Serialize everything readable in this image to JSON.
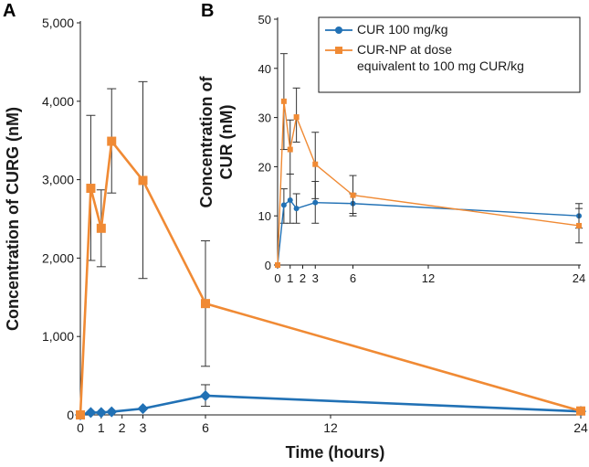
{
  "colors": {
    "cur": "#2171b5",
    "np": "#f08a34",
    "axis": "#1a1a1a",
    "errorbar": "#333333"
  },
  "chart_data": [
    {
      "panel": "A",
      "type": "line",
      "xlabel": "Time (hours)",
      "ylabel": "Concentration of CURG (nM)",
      "xlim": [
        0,
        24
      ],
      "ylim": [
        0,
        5000
      ],
      "xticks": [
        0,
        1,
        2,
        3,
        6,
        12,
        24
      ],
      "xtick_labels": [
        "0",
        "1",
        "2",
        "3",
        "6",
        "12",
        "24"
      ],
      "yticks": [
        0,
        1000,
        2000,
        3000,
        4000,
        5000
      ],
      "ytick_labels": [
        "0",
        "1,000",
        "2,000",
        "3,000",
        "4,000",
        "5,000"
      ],
      "grid": false,
      "series": [
        {
          "name": "CUR 100 mg/kg",
          "color_key": "cur",
          "marker": "diamond",
          "x": [
            0,
            0.5,
            1,
            1.5,
            3,
            6,
            24
          ],
          "y": [
            0,
            30,
            30,
            40,
            80,
            245,
            45
          ],
          "err_low": [
            0,
            0,
            0,
            0,
            0,
            110,
            0
          ],
          "err_high": [
            0,
            0,
            0,
            0,
            0,
            385,
            0
          ]
        },
        {
          "name": "CUR-NP at dose equivalent to 100 mg CUR/kg",
          "color_key": "np",
          "marker": "square",
          "x": [
            0,
            0.5,
            1,
            1.5,
            3,
            6,
            24
          ],
          "y": [
            0,
            2890,
            2380,
            3490,
            2990,
            1420,
            50
          ],
          "err_low": [
            0,
            1970,
            1890,
            2830,
            1740,
            620,
            50
          ],
          "err_high": [
            0,
            3820,
            2870,
            4160,
            4250,
            2220,
            50
          ]
        }
      ]
    },
    {
      "panel": "B",
      "type": "line",
      "xlabel": "",
      "ylabel_lines": [
        "Concentration of",
        "CUR (nM)"
      ],
      "xlim": [
        0,
        24
      ],
      "ylim": [
        0,
        50
      ],
      "xticks": [
        0,
        1,
        2,
        3,
        6,
        12,
        24
      ],
      "xtick_labels": [
        "0",
        "1",
        "2",
        "3",
        "6",
        "12",
        "24"
      ],
      "yticks": [
        0,
        10,
        20,
        30,
        40,
        50
      ],
      "ytick_labels": [
        "0",
        "10",
        "20",
        "30",
        "40",
        "50"
      ],
      "grid": false,
      "legend_position": "top-right",
      "legend_lines": [
        {
          "color_key": "cur",
          "marker": "circle",
          "lines": [
            "CUR 100 mg/kg"
          ]
        },
        {
          "color_key": "np",
          "marker": "square",
          "lines": [
            "CUR-NP at dose",
            "equivalent to 100 mg CUR/kg"
          ]
        }
      ],
      "series": [
        {
          "name": "CUR 100 mg/kg",
          "color_key": "cur",
          "marker": "circle",
          "x": [
            0,
            0.5,
            1,
            1.5,
            3,
            6,
            24
          ],
          "y": [
            0,
            12.2,
            13.2,
            11.5,
            12.7,
            12.5,
            10.0
          ],
          "err_low": [
            0,
            8.5,
            8.5,
            8.5,
            8.5,
            10.5,
            7.5
          ],
          "err_high": [
            0,
            15.5,
            18.5,
            14.5,
            17.0,
            14.5,
            12.5
          ]
        },
        {
          "name": "CUR-NP at dose equivalent to 100 mg CUR/kg",
          "color_key": "np",
          "marker": "square",
          "x": [
            0,
            0.5,
            1,
            1.5,
            3,
            6,
            24
          ],
          "y": [
            0,
            33.3,
            23.5,
            30.1,
            20.5,
            14.2,
            8.0
          ],
          "err_low": [
            0,
            23.5,
            18.5,
            25.0,
            13.5,
            10.0,
            4.5
          ],
          "err_high": [
            0,
            43.0,
            29.5,
            36.0,
            27.0,
            18.2,
            11.5
          ]
        }
      ]
    }
  ]
}
